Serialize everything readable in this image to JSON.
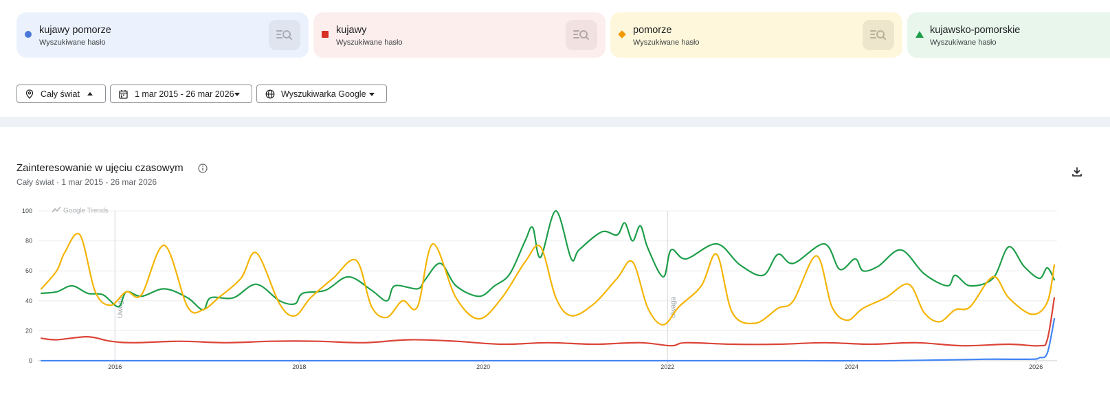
{
  "terms": [
    {
      "name": "kujawy pomorze",
      "type": "Wyszukiwane hasło",
      "color": "#4a78d9",
      "bg": "#ecf2fd",
      "btn_bg": "#e0e4ee",
      "marker": "circle",
      "icon": "search-insights-icon"
    },
    {
      "name": "kujawy",
      "type": "Wyszukiwane hasło",
      "color": "#d93025",
      "bg": "#fdeeee",
      "btn_bg": "#f1e1e1",
      "marker": "square",
      "icon": "search-insights-icon"
    },
    {
      "name": "pomorze",
      "type": "Wyszukiwane hasło",
      "color": "#f29900",
      "bg": "#fef7db",
      "btn_bg": "#eee6cc",
      "marker": "diamond",
      "icon": "search-insights-icon"
    },
    {
      "name": "kujawsko-pomorskie",
      "type": "Wyszukiwane hasło",
      "color": "#1e9e4a",
      "bg": "#e8f6ec",
      "btn_bg": "#dbe8de",
      "marker": "triangle",
      "icon": "search-insights-icon"
    }
  ],
  "filters": {
    "region": {
      "label": "Cały świat",
      "icon": "location-pin-icon"
    },
    "date_range": {
      "label": "1 mar 2015 - 26 mar 2026",
      "icon": "calendar-icon"
    },
    "property": {
      "label": "Wyszukiwarka Google",
      "icon": "globe-icon"
    }
  },
  "chart_section": {
    "title": "Zainteresowanie w ujęciu czasowym",
    "subtitle": "Cały świat  ·  1 mar 2015 - 26 mar 2026",
    "watermark": "Google Trends",
    "note_label": "Uwaga"
  },
  "chart_data": {
    "type": "line",
    "title": "Zainteresowanie w ujęciu czasowym",
    "xlabel": "",
    "ylabel": "",
    "xlim": [
      "2015-03-01",
      "2026-03-26"
    ],
    "ylim": [
      0,
      100
    ],
    "y_ticks": [
      0,
      20,
      40,
      60,
      80,
      100
    ],
    "x_ticks": [
      "2016",
      "2018",
      "2020",
      "2022",
      "2024",
      "2026"
    ],
    "grid": true,
    "annotations": [
      {
        "label": "Uwaga",
        "date": "2016-01-01"
      },
      {
        "label": "Uwaga",
        "date": "2022-01-01"
      }
    ],
    "series": [
      {
        "name": "kujawsko-pomorskie",
        "color": "#1e9e4a",
        "points": [
          [
            "2015-03",
            45
          ],
          [
            "2015-05",
            46
          ],
          [
            "2015-07",
            50
          ],
          [
            "2015-09",
            45
          ],
          [
            "2015-11",
            44
          ],
          [
            "2016-01",
            36
          ],
          [
            "2016-02",
            46
          ],
          [
            "2016-04",
            43
          ],
          [
            "2016-07",
            48
          ],
          [
            "2016-10",
            42
          ],
          [
            "2016-12",
            34
          ],
          [
            "2017-01",
            42
          ],
          [
            "2017-04",
            42
          ],
          [
            "2017-07",
            51
          ],
          [
            "2017-10",
            40
          ],
          [
            "2017-12",
            38
          ],
          [
            "2018-01",
            45
          ],
          [
            "2018-04",
            47
          ],
          [
            "2018-07",
            56
          ],
          [
            "2018-10",
            47
          ],
          [
            "2018-12",
            40
          ],
          [
            "2019-01",
            50
          ],
          [
            "2019-04",
            48
          ],
          [
            "2019-05",
            54
          ],
          [
            "2019-07",
            65
          ],
          [
            "2019-09",
            50
          ],
          [
            "2019-12",
            43
          ],
          [
            "2020-02",
            50
          ],
          [
            "2020-04",
            58
          ],
          [
            "2020-06",
            80
          ],
          [
            "2020-07",
            89
          ],
          [
            "2020-08",
            69
          ],
          [
            "2020-10",
            100
          ],
          [
            "2020-12",
            68
          ],
          [
            "2021-01",
            74
          ],
          [
            "2021-04",
            86
          ],
          [
            "2021-06",
            84
          ],
          [
            "2021-07",
            92
          ],
          [
            "2021-08",
            80
          ],
          [
            "2021-09",
            90
          ],
          [
            "2021-10",
            75
          ],
          [
            "2021-12",
            56
          ],
          [
            "2022-01",
            74
          ],
          [
            "2022-03",
            68
          ],
          [
            "2022-07",
            78
          ],
          [
            "2022-10",
            64
          ],
          [
            "2023-01",
            57
          ],
          [
            "2023-03",
            71
          ],
          [
            "2023-05",
            65
          ],
          [
            "2023-09",
            78
          ],
          [
            "2023-11",
            61
          ],
          [
            "2024-01",
            68
          ],
          [
            "2024-02",
            60
          ],
          [
            "2024-04",
            63
          ],
          [
            "2024-07",
            74
          ],
          [
            "2024-10",
            58
          ],
          [
            "2025-01",
            50
          ],
          [
            "2025-02",
            57
          ],
          [
            "2025-04",
            50
          ],
          [
            "2025-07",
            55
          ],
          [
            "2025-09",
            76
          ],
          [
            "2025-11",
            63
          ],
          [
            "2026-01",
            55
          ],
          [
            "2026-02",
            62
          ],
          [
            "2026-03",
            54
          ]
        ]
      },
      {
        "name": "pomorze",
        "color": "#f4b400",
        "points": [
          [
            "2015-03",
            48
          ],
          [
            "2015-05",
            60
          ],
          [
            "2015-06",
            72
          ],
          [
            "2015-08",
            84
          ],
          [
            "2015-10",
            46
          ],
          [
            "2015-12",
            37
          ],
          [
            "2016-02",
            46
          ],
          [
            "2016-04",
            44
          ],
          [
            "2016-07",
            77
          ],
          [
            "2016-10",
            36
          ],
          [
            "2016-12",
            34
          ],
          [
            "2017-02",
            42
          ],
          [
            "2017-05",
            55
          ],
          [
            "2017-07",
            72
          ],
          [
            "2017-10",
            38
          ],
          [
            "2017-12",
            30
          ],
          [
            "2018-02",
            42
          ],
          [
            "2018-05",
            55
          ],
          [
            "2018-08",
            67
          ],
          [
            "2018-10",
            36
          ],
          [
            "2018-12",
            29
          ],
          [
            "2019-02",
            40
          ],
          [
            "2019-04",
            36
          ],
          [
            "2019-06",
            78
          ],
          [
            "2019-09",
            42
          ],
          [
            "2019-12",
            28
          ],
          [
            "2020-03",
            42
          ],
          [
            "2020-06",
            66
          ],
          [
            "2020-08",
            76
          ],
          [
            "2020-10",
            42
          ],
          [
            "2020-12",
            30
          ],
          [
            "2021-03",
            38
          ],
          [
            "2021-06",
            55
          ],
          [
            "2021-08",
            66
          ],
          [
            "2021-10",
            35
          ],
          [
            "2021-12",
            24
          ],
          [
            "2022-02",
            36
          ],
          [
            "2022-05",
            50
          ],
          [
            "2022-07",
            71
          ],
          [
            "2022-09",
            32
          ],
          [
            "2022-12",
            25
          ],
          [
            "2023-03",
            35
          ],
          [
            "2023-05",
            40
          ],
          [
            "2023-08",
            70
          ],
          [
            "2023-10",
            36
          ],
          [
            "2023-12",
            27
          ],
          [
            "2024-02",
            35
          ],
          [
            "2024-05",
            42
          ],
          [
            "2024-08",
            51
          ],
          [
            "2024-10",
            32
          ],
          [
            "2024-12",
            26
          ],
          [
            "2025-02",
            34
          ],
          [
            "2025-04",
            36
          ],
          [
            "2025-07",
            56
          ],
          [
            "2025-09",
            42
          ],
          [
            "2025-12",
            31
          ],
          [
            "2026-02",
            39
          ],
          [
            "2026-03",
            64
          ]
        ]
      },
      {
        "name": "kujawy",
        "color": "#db4437",
        "points": [
          [
            "2015-03",
            15
          ],
          [
            "2015-05",
            14
          ],
          [
            "2015-09",
            16
          ],
          [
            "2015-12",
            13
          ],
          [
            "2016-03",
            12
          ],
          [
            "2016-09",
            13
          ],
          [
            "2017-03",
            12
          ],
          [
            "2017-09",
            13
          ],
          [
            "2018-03",
            13
          ],
          [
            "2018-09",
            12
          ],
          [
            "2019-03",
            14
          ],
          [
            "2019-09",
            13
          ],
          [
            "2020-03",
            11
          ],
          [
            "2020-09",
            12
          ],
          [
            "2021-03",
            11
          ],
          [
            "2021-09",
            12
          ],
          [
            "2022-01",
            10
          ],
          [
            "2022-03",
            12
          ],
          [
            "2022-09",
            11
          ],
          [
            "2023-03",
            11
          ],
          [
            "2023-09",
            12
          ],
          [
            "2024-03",
            11
          ],
          [
            "2024-09",
            12
          ],
          [
            "2025-03",
            10
          ],
          [
            "2025-09",
            11
          ],
          [
            "2026-01",
            10
          ],
          [
            "2026-02",
            14
          ],
          [
            "2026-03",
            42
          ]
        ]
      },
      {
        "name": "kujawy pomorze",
        "color": "#4285f4",
        "points": [
          [
            "2015-03",
            0
          ],
          [
            "2016-06",
            0
          ],
          [
            "2017-06",
            0
          ],
          [
            "2018-06",
            0
          ],
          [
            "2019-06",
            0
          ],
          [
            "2020-06",
            0
          ],
          [
            "2021-06",
            0
          ],
          [
            "2022-06",
            0
          ],
          [
            "2023-06",
            0
          ],
          [
            "2024-06",
            0
          ],
          [
            "2025-06",
            1
          ],
          [
            "2025-12",
            1
          ],
          [
            "2026-01",
            2
          ],
          [
            "2026-02",
            5
          ],
          [
            "2026-03",
            28
          ]
        ]
      }
    ]
  }
}
